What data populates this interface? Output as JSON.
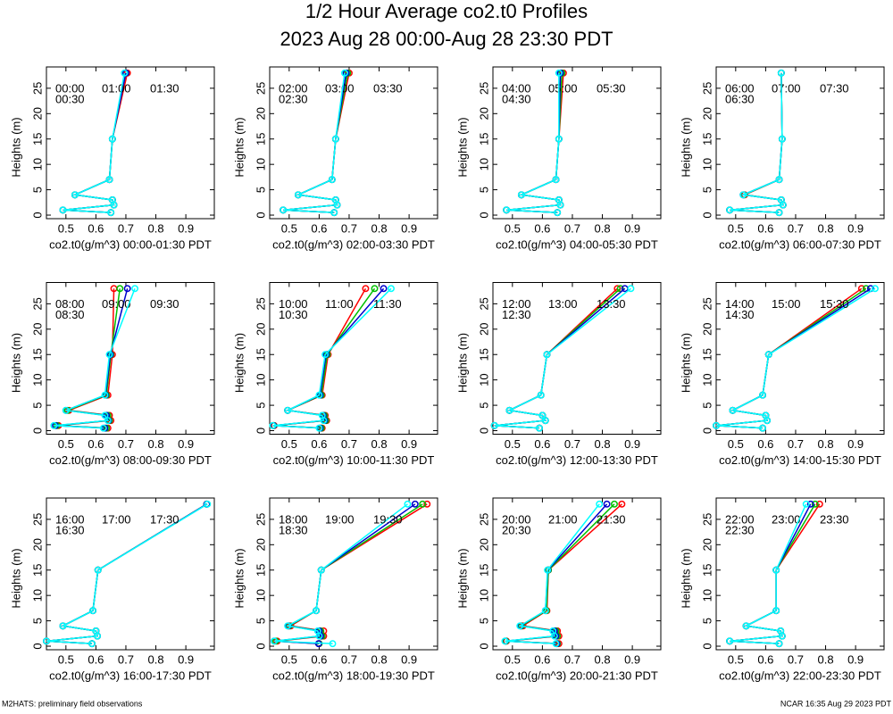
{
  "title": "1/2 Hour Average co2.t0 Profiles",
  "subtitle": "2023 Aug 28 00:00-Aug 28 23:30 PDT",
  "footer_left": "M2HATS: preliminary field observations",
  "footer_right": "NCAR 16:35 Aug 29 2023 PDT",
  "chart_data": [
    {
      "type": "line",
      "xlabel": "co2.t0(g/m^3) 00:00-01:30 PDT",
      "ylabel": "Heights (m)",
      "y": [
        28,
        15,
        7,
        4,
        3,
        2,
        1,
        0.5
      ],
      "xlim": [
        0.435,
        0.995
      ],
      "ylim": [
        -0.7,
        29.2
      ],
      "xticks": [
        0.5,
        0.6,
        0.7,
        0.8,
        0.9
      ],
      "yticks": [
        0,
        5,
        10,
        15,
        20,
        25
      ],
      "series": [
        {
          "name": "00:00",
          "color": "#ff0000",
          "values": [
            0.705,
            0.655,
            0.645,
            0.53,
            0.655,
            0.66,
            0.49,
            0.65
          ]
        },
        {
          "name": "00:30",
          "color": "#00c000",
          "values": [
            0.7,
            0.655,
            0.645,
            0.53,
            0.655,
            0.66,
            0.49,
            0.65
          ]
        },
        {
          "name": "01:00",
          "color": "#0000cc",
          "values": [
            0.7,
            0.655,
            0.645,
            0.53,
            0.655,
            0.66,
            0.49,
            0.65
          ]
        },
        {
          "name": "01:30",
          "color": "#00ffff",
          "values": [
            0.695,
            0.655,
            0.645,
            0.53,
            0.655,
            0.66,
            0.49,
            0.65
          ]
        }
      ]
    },
    {
      "type": "line",
      "xlabel": "co2.t0(g/m^3) 02:00-03:30 PDT",
      "ylabel": "Heights (m)",
      "y": [
        28,
        15,
        7,
        4,
        3,
        2,
        1,
        0.5
      ],
      "xlim": [
        0.435,
        0.995
      ],
      "ylim": [
        -0.7,
        29.2
      ],
      "xticks": [
        0.5,
        0.6,
        0.7,
        0.8,
        0.9
      ],
      "yticks": [
        0,
        5,
        10,
        15,
        20,
        25
      ],
      "series": [
        {
          "name": "02:00",
          "color": "#ff0000",
          "values": [
            0.7,
            0.655,
            0.643,
            0.53,
            0.655,
            0.66,
            0.48,
            0.65
          ]
        },
        {
          "name": "02:30",
          "color": "#00c000",
          "values": [
            0.695,
            0.655,
            0.643,
            0.53,
            0.655,
            0.66,
            0.48,
            0.65
          ]
        },
        {
          "name": "03:00",
          "color": "#0000cc",
          "values": [
            0.69,
            0.655,
            0.643,
            0.53,
            0.655,
            0.66,
            0.48,
            0.65
          ]
        },
        {
          "name": "03:30",
          "color": "#00ffff",
          "values": [
            0.685,
            0.655,
            0.643,
            0.53,
            0.655,
            0.66,
            0.48,
            0.65
          ]
        }
      ]
    },
    {
      "type": "line",
      "xlabel": "co2.t0(g/m^3) 04:00-05:30 PDT",
      "ylabel": "Heights (m)",
      "y": [
        28,
        15,
        7,
        4,
        3,
        2,
        1,
        0.5
      ],
      "xlim": [
        0.435,
        0.995
      ],
      "ylim": [
        -0.7,
        29.2
      ],
      "xticks": [
        0.5,
        0.6,
        0.7,
        0.8,
        0.9
      ],
      "yticks": [
        0,
        5,
        10,
        15,
        20,
        25
      ],
      "series": [
        {
          "name": "04:00",
          "color": "#ff0000",
          "values": [
            0.67,
            0.655,
            0.645,
            0.53,
            0.655,
            0.66,
            0.48,
            0.65
          ]
        },
        {
          "name": "04:30",
          "color": "#00c000",
          "values": [
            0.665,
            0.655,
            0.645,
            0.53,
            0.655,
            0.66,
            0.48,
            0.65
          ]
        },
        {
          "name": "05:00",
          "color": "#0000cc",
          "values": [
            0.66,
            0.655,
            0.645,
            0.53,
            0.655,
            0.66,
            0.48,
            0.65
          ]
        },
        {
          "name": "05:30",
          "color": "#00ffff",
          "values": [
            0.655,
            0.655,
            0.645,
            0.53,
            0.655,
            0.66,
            0.48,
            0.65
          ]
        }
      ]
    },
    {
      "type": "line",
      "xlabel": "co2.t0(g/m^3) 06:00-07:30 PDT",
      "ylabel": "Heights (m)",
      "y": [
        28,
        15,
        7,
        4,
        3,
        2,
        1,
        0.5
      ],
      "xlim": [
        0.435,
        0.995
      ],
      "ylim": [
        -0.7,
        29.2
      ],
      "xticks": [
        0.5,
        0.6,
        0.7,
        0.8,
        0.9
      ],
      "yticks": [
        0,
        5,
        10,
        15,
        20,
        25
      ],
      "series": [
        {
          "name": "06:00",
          "color": "#ff0000",
          "values": [
            0.652,
            0.655,
            0.645,
            0.53,
            0.652,
            0.658,
            0.48,
            0.645
          ]
        },
        {
          "name": "06:30",
          "color": "#00c000",
          "values": [
            0.652,
            0.655,
            0.645,
            0.527,
            0.652,
            0.658,
            0.48,
            0.645
          ]
        },
        {
          "name": "07:00",
          "color": "#0000cc",
          "values": [
            0.652,
            0.655,
            0.645,
            0.525,
            0.652,
            0.658,
            0.48,
            0.645
          ]
        },
        {
          "name": "07:30",
          "color": "#00ffff",
          "values": [
            0.652,
            0.655,
            0.645,
            0.525,
            0.652,
            0.658,
            0.48,
            0.645
          ]
        }
      ]
    },
    {
      "type": "line",
      "xlabel": "co2.t0(g/m^3) 08:00-09:30 PDT",
      "ylabel": "Heights (m)",
      "y": [
        28,
        15,
        7,
        4,
        3,
        2,
        1,
        0.5
      ],
      "xlim": [
        0.435,
        0.995
      ],
      "ylim": [
        -0.7,
        29.2
      ],
      "xticks": [
        0.5,
        0.6,
        0.7,
        0.8,
        0.9
      ],
      "yticks": [
        0,
        5,
        10,
        15,
        20,
        25
      ],
      "series": [
        {
          "name": "08:00",
          "color": "#ff0000",
          "values": [
            0.66,
            0.655,
            0.64,
            0.51,
            0.645,
            0.65,
            0.475,
            0.64
          ]
        },
        {
          "name": "08:30",
          "color": "#00c000",
          "values": [
            0.68,
            0.65,
            0.635,
            0.505,
            0.64,
            0.645,
            0.47,
            0.635
          ]
        },
        {
          "name": "09:00",
          "color": "#0000cc",
          "values": [
            0.705,
            0.648,
            0.632,
            0.5,
            0.635,
            0.642,
            0.465,
            0.63
          ]
        },
        {
          "name": "09:30",
          "color": "#00ffff",
          "values": [
            0.73,
            0.645,
            0.63,
            0.5,
            0.63,
            0.64,
            0.46,
            0.625
          ]
        }
      ]
    },
    {
      "type": "line",
      "xlabel": "co2.t0(g/m^3) 10:00-11:30 PDT",
      "ylabel": "Heights (m)",
      "y": [
        28,
        15,
        7,
        4,
        3,
        2,
        1,
        0.5
      ],
      "xlim": [
        0.435,
        0.995
      ],
      "ylim": [
        -0.7,
        29.2
      ],
      "xticks": [
        0.5,
        0.6,
        0.7,
        0.8,
        0.9
      ],
      "yticks": [
        0,
        5,
        10,
        15,
        20,
        25
      ],
      "series": [
        {
          "name": "10:00",
          "color": "#ff0000",
          "values": [
            0.755,
            0.63,
            0.61,
            0.495,
            0.62,
            0.625,
            0.45,
            0.61
          ]
        },
        {
          "name": "10:30",
          "color": "#00c000",
          "values": [
            0.785,
            0.627,
            0.607,
            0.495,
            0.617,
            0.622,
            0.448,
            0.607
          ]
        },
        {
          "name": "11:00",
          "color": "#0000cc",
          "values": [
            0.815,
            0.623,
            0.603,
            0.495,
            0.613,
            0.618,
            0.447,
            0.603
          ]
        },
        {
          "name": "11:30",
          "color": "#00ffff",
          "values": [
            0.84,
            0.62,
            0.6,
            0.495,
            0.61,
            0.615,
            0.445,
            0.6
          ]
        }
      ]
    },
    {
      "type": "line",
      "xlabel": "co2.t0(g/m^3) 12:00-13:30 PDT",
      "ylabel": "Heights (m)",
      "y": [
        28,
        15,
        7,
        4,
        3,
        2,
        1,
        0.5
      ],
      "xlim": [
        0.435,
        0.995
      ],
      "ylim": [
        -0.7,
        29.2
      ],
      "xticks": [
        0.5,
        0.6,
        0.7,
        0.8,
        0.9
      ],
      "yticks": [
        0,
        5,
        10,
        15,
        20,
        25
      ],
      "series": [
        {
          "name": "12:00",
          "color": "#ff0000",
          "values": [
            0.85,
            0.615,
            0.595,
            0.49,
            0.6,
            0.61,
            0.44,
            0.59
          ]
        },
        {
          "name": "12:30",
          "color": "#00c000",
          "values": [
            0.86,
            0.615,
            0.595,
            0.49,
            0.6,
            0.61,
            0.44,
            0.59
          ]
        },
        {
          "name": "13:00",
          "color": "#0000cc",
          "values": [
            0.875,
            0.615,
            0.595,
            0.49,
            0.6,
            0.61,
            0.44,
            0.59
          ]
        },
        {
          "name": "13:30",
          "color": "#00ffff",
          "values": [
            0.895,
            0.615,
            0.595,
            0.49,
            0.6,
            0.61,
            0.44,
            0.59
          ]
        }
      ]
    },
    {
      "type": "line",
      "xlabel": "co2.t0(g/m^3) 14:00-15:30 PDT",
      "ylabel": "Heights (m)",
      "y": [
        28,
        15,
        7,
        4,
        3,
        2,
        1,
        0.5
      ],
      "xlim": [
        0.435,
        0.995
      ],
      "ylim": [
        -0.7,
        29.2
      ],
      "xticks": [
        0.5,
        0.6,
        0.7,
        0.8,
        0.9
      ],
      "yticks": [
        0,
        5,
        10,
        15,
        20,
        25
      ],
      "series": [
        {
          "name": "14:00",
          "color": "#ff0000",
          "values": [
            0.92,
            0.61,
            0.59,
            0.49,
            0.6,
            0.605,
            0.435,
            0.59
          ]
        },
        {
          "name": "14:30",
          "color": "#00c000",
          "values": [
            0.935,
            0.61,
            0.59,
            0.49,
            0.6,
            0.605,
            0.435,
            0.59
          ]
        },
        {
          "name": "15:00",
          "color": "#0000cc",
          "values": [
            0.95,
            0.61,
            0.59,
            0.49,
            0.6,
            0.605,
            0.435,
            0.59
          ]
        },
        {
          "name": "15:30",
          "color": "#00ffff",
          "values": [
            0.965,
            0.61,
            0.59,
            0.49,
            0.6,
            0.605,
            0.435,
            0.59
          ]
        }
      ]
    },
    {
      "type": "line",
      "xlabel": "co2.t0(g/m^3) 16:00-17:30 PDT",
      "ylabel": "Heights (m)",
      "y": [
        28,
        15,
        7,
        4,
        3,
        2,
        1,
        0.5
      ],
      "xlim": [
        0.435,
        0.995
      ],
      "ylim": [
        -0.7,
        29.2
      ],
      "xticks": [
        0.5,
        0.6,
        0.7,
        0.8,
        0.9
      ],
      "yticks": [
        0,
        5,
        10,
        15,
        20,
        25
      ],
      "series": [
        {
          "name": "16:00",
          "color": "#ff0000",
          "values": [
            0.97,
            0.607,
            0.59,
            0.49,
            0.6,
            0.605,
            0.435,
            0.587
          ]
        },
        {
          "name": "16:30",
          "color": "#00c000",
          "values": [
            0.97,
            0.607,
            0.59,
            0.49,
            0.6,
            0.605,
            0.435,
            0.587
          ]
        },
        {
          "name": "17:00",
          "color": "#0000cc",
          "values": [
            0.97,
            0.607,
            0.59,
            0.49,
            0.6,
            0.605,
            0.435,
            0.587
          ]
        },
        {
          "name": "17:30",
          "color": "#00ffff",
          "values": [
            0.972,
            0.607,
            0.59,
            0.49,
            0.6,
            0.605,
            0.435,
            0.587
          ]
        }
      ]
    },
    {
      "type": "line",
      "xlabel": "co2.t0(g/m^3) 18:00-19:30 PDT",
      "ylabel": "Heights (m)",
      "y": [
        28,
        15,
        7,
        4,
        3,
        2,
        1,
        0.5
      ],
      "xlim": [
        0.435,
        0.995
      ],
      "ylim": [
        -0.7,
        29.2
      ],
      "xticks": [
        0.5,
        0.6,
        0.7,
        0.8,
        0.9
      ],
      "yticks": [
        0,
        5,
        10,
        15,
        20,
        25
      ],
      "series": [
        {
          "name": "18:00",
          "color": "#ff0000",
          "values": [
            0.96,
            0.607,
            0.59,
            0.505,
            0.615,
            0.615,
            0.46,
            0.6
          ]
        },
        {
          "name": "18:30",
          "color": "#00c000",
          "values": [
            0.945,
            0.607,
            0.59,
            0.5,
            0.605,
            0.61,
            0.455,
            0.6
          ]
        },
        {
          "name": "19:00",
          "color": "#0000cc",
          "values": [
            0.92,
            0.607,
            0.59,
            0.497,
            0.6,
            0.605,
            0.45,
            0.598
          ]
        },
        {
          "name": "19:30",
          "color": "#00ffff",
          "values": [
            0.895,
            0.607,
            0.59,
            0.495,
            0.595,
            0.6,
            0.45,
            0.645
          ]
        }
      ]
    },
    {
      "type": "line",
      "xlabel": "co2.t0(g/m^3) 20:00-21:30 PDT",
      "ylabel": "Heights (m)",
      "y": [
        28,
        15,
        7,
        4,
        3,
        2,
        1,
        0.5
      ],
      "xlim": [
        0.435,
        0.995
      ],
      "ylim": [
        -0.7,
        29.2
      ],
      "xticks": [
        0.5,
        0.6,
        0.7,
        0.8,
        0.9
      ],
      "yticks": [
        0,
        5,
        10,
        15,
        20,
        25
      ],
      "series": [
        {
          "name": "20:00",
          "color": "#ff0000",
          "values": [
            0.865,
            0.62,
            0.615,
            0.535,
            0.65,
            0.655,
            0.48,
            0.655
          ]
        },
        {
          "name": "20:30",
          "color": "#00c000",
          "values": [
            0.84,
            0.62,
            0.613,
            0.53,
            0.645,
            0.65,
            0.478,
            0.65
          ]
        },
        {
          "name": "21:00",
          "color": "#0000cc",
          "values": [
            0.815,
            0.618,
            0.61,
            0.527,
            0.64,
            0.645,
            0.476,
            0.648
          ]
        },
        {
          "name": "21:30",
          "color": "#00ffff",
          "values": [
            0.79,
            0.617,
            0.61,
            0.525,
            0.635,
            0.64,
            0.475,
            0.645
          ]
        }
      ]
    },
    {
      "type": "line",
      "xlabel": "co2.t0(g/m^3) 22:00-23:30 PDT",
      "ylabel": "Heights (m)",
      "y": [
        28,
        15,
        7,
        4,
        3,
        2,
        1,
        0.5
      ],
      "xlim": [
        0.435,
        0.995
      ],
      "ylim": [
        -0.7,
        29.2
      ],
      "xticks": [
        0.5,
        0.6,
        0.7,
        0.8,
        0.9
      ],
      "yticks": [
        0,
        5,
        10,
        15,
        20,
        25
      ],
      "series": [
        {
          "name": "22:00",
          "color": "#ff0000",
          "values": [
            0.78,
            0.635,
            0.635,
            0.535,
            0.65,
            0.655,
            0.48,
            0.645
          ]
        },
        {
          "name": "22:30",
          "color": "#00c000",
          "values": [
            0.765,
            0.635,
            0.635,
            0.535,
            0.65,
            0.655,
            0.48,
            0.645
          ]
        },
        {
          "name": "23:00",
          "color": "#0000cc",
          "values": [
            0.75,
            0.635,
            0.635,
            0.535,
            0.65,
            0.655,
            0.48,
            0.645
          ]
        },
        {
          "name": "23:30",
          "color": "#00ffff",
          "values": [
            0.735,
            0.635,
            0.635,
            0.535,
            0.65,
            0.655,
            0.48,
            0.645
          ]
        }
      ]
    }
  ]
}
